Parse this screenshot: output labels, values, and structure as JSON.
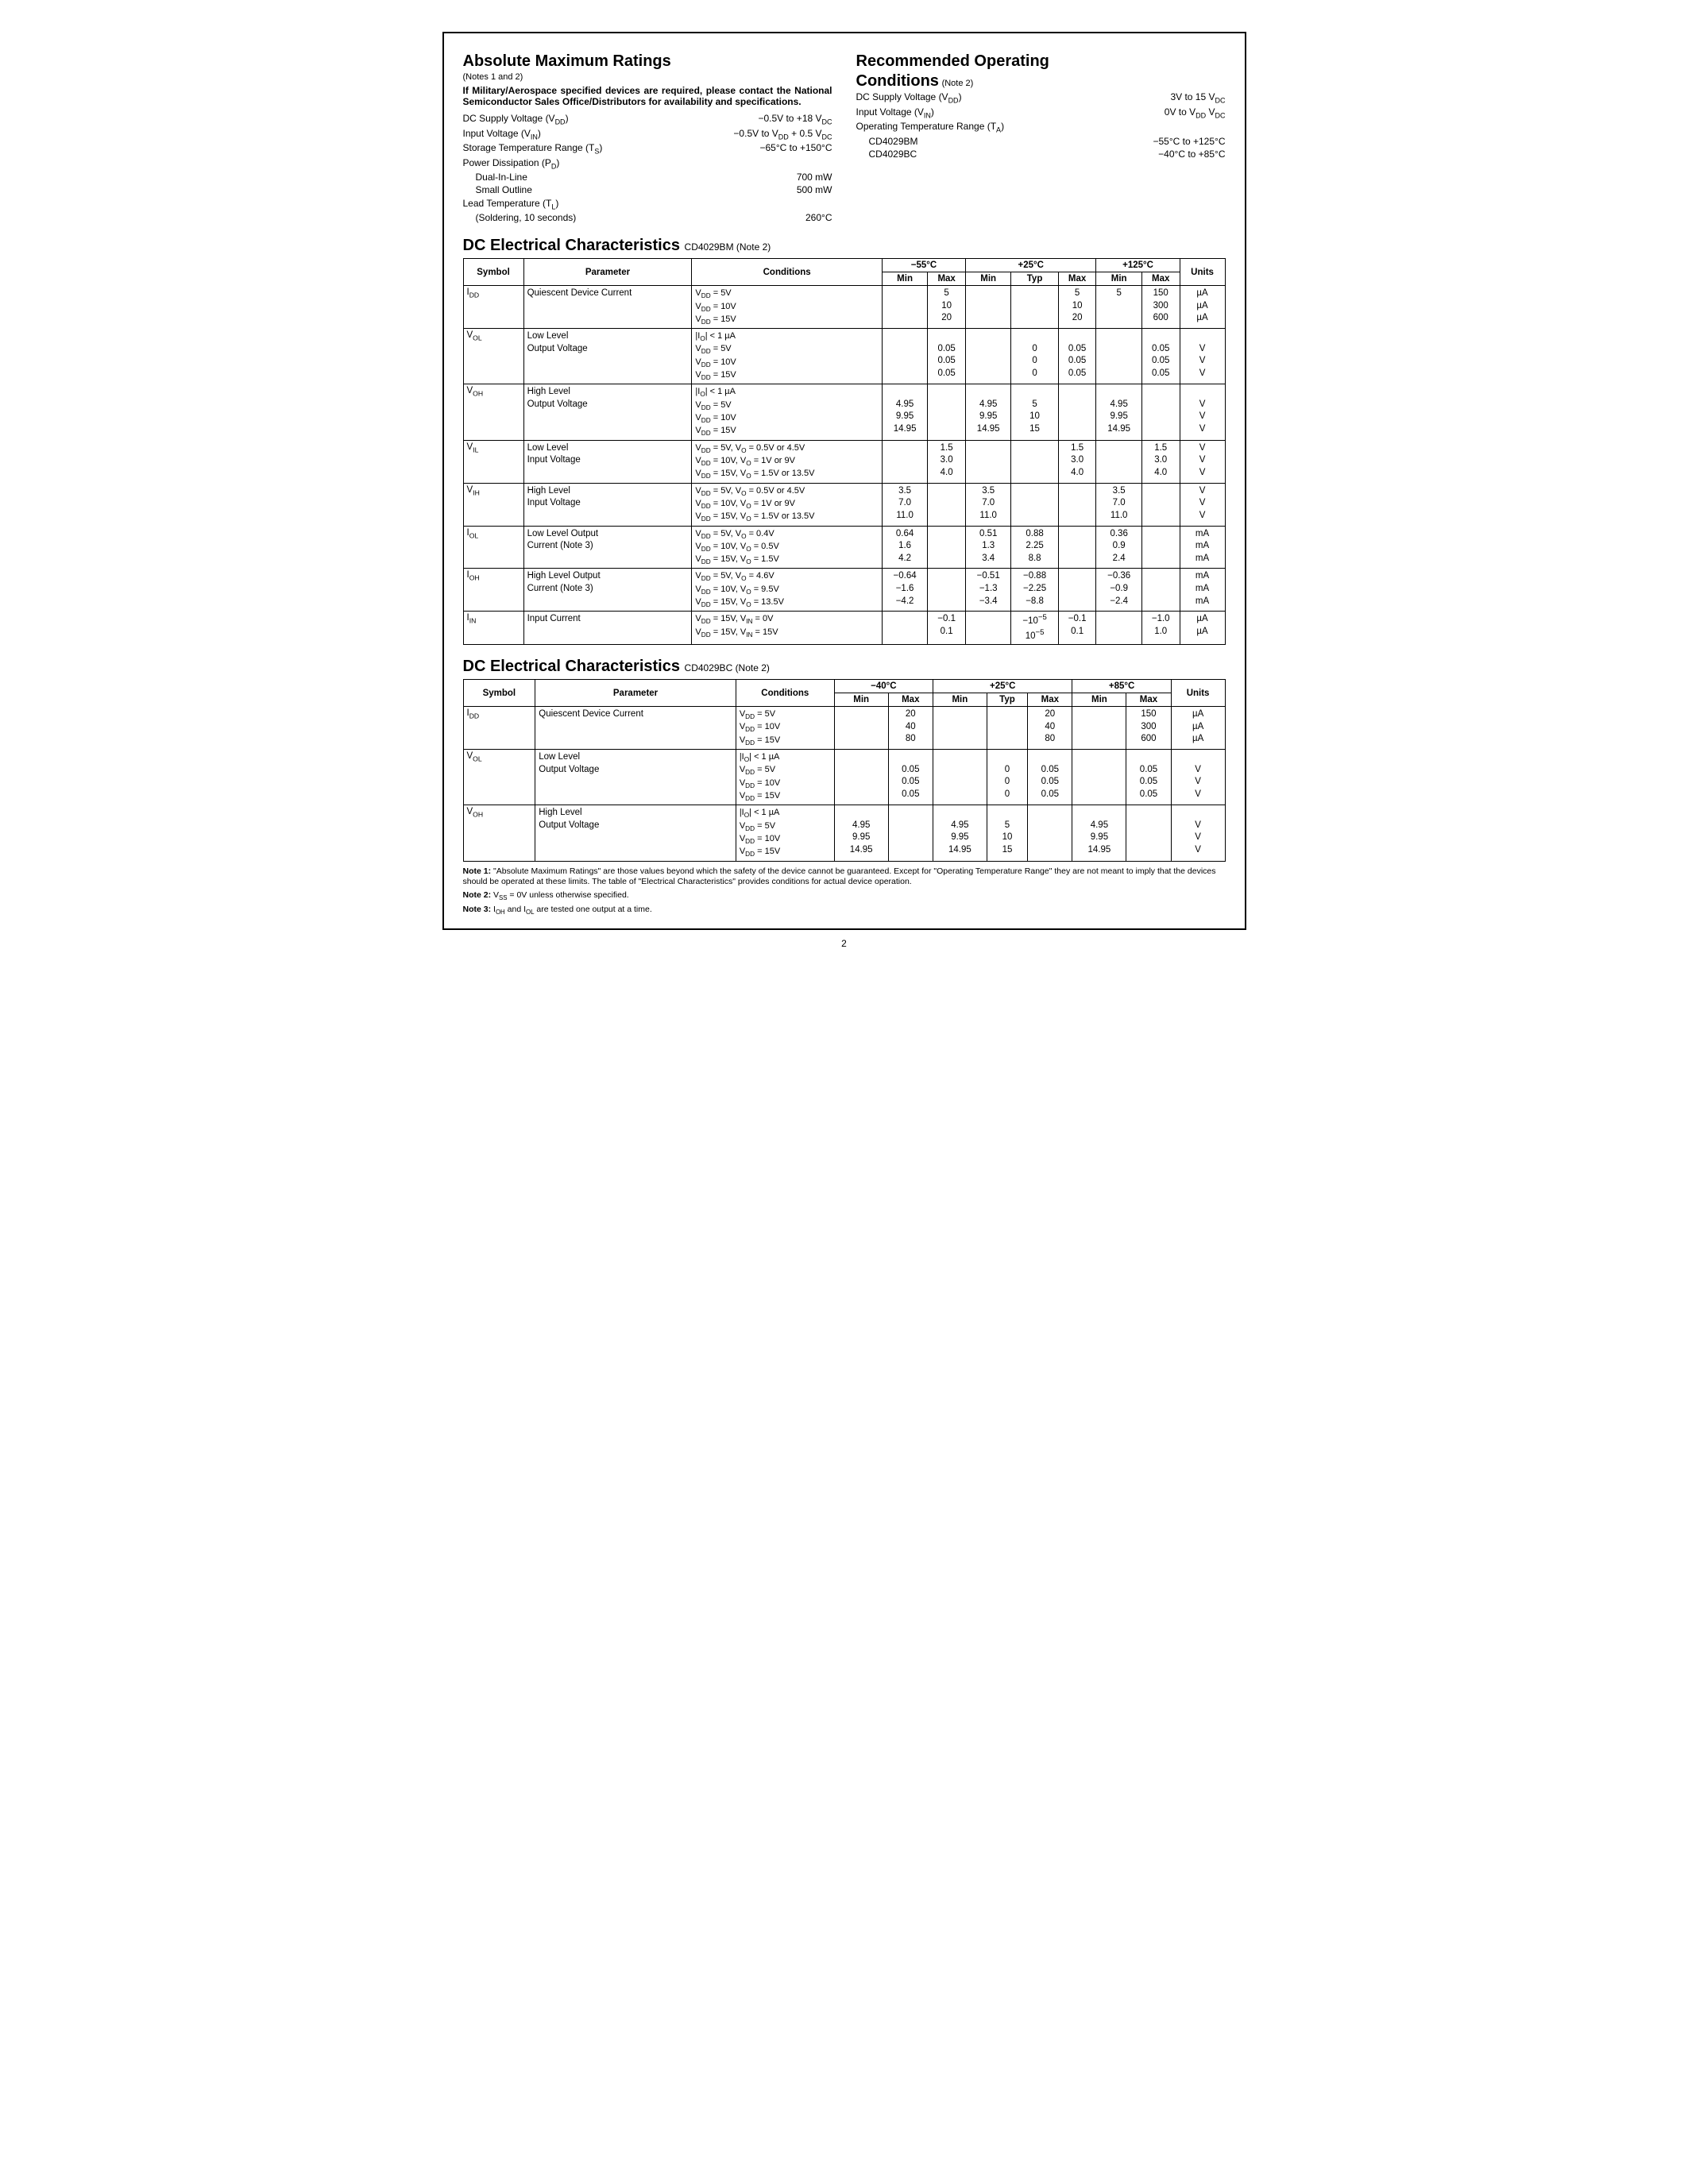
{
  "page_number": "2",
  "left": {
    "title": "Absolute Maximum Ratings",
    "note_suffix": "(Notes 1 and 2)",
    "military_note": "If Military/Aerospace specified devices are required, please contact the National Semiconductor Sales Office/Distributors for availability and specifications.",
    "rows": [
      {
        "label": "DC Supply Voltage (V<sub>DD</sub>)",
        "val": "−0.5V to +18 V<sub>DC</sub>"
      },
      {
        "label": "Input Voltage (V<sub>IN</sub>)",
        "val": "−0.5V to V<sub>DD</sub> + 0.5 V<sub>DC</sub>"
      },
      {
        "label": "Storage Temperature Range (T<sub>S</sub>)",
        "val": "−65°C to +150°C"
      },
      {
        "label": "Power Dissipation (P<sub>D</sub>)",
        "val": ""
      },
      {
        "label": "Dual-In-Line",
        "val": "700 mW",
        "indent": true
      },
      {
        "label": "Small Outline",
        "val": "500 mW",
        "indent": true
      },
      {
        "label": "Lead Temperature (T<sub>L</sub>)",
        "val": ""
      },
      {
        "label": "(Soldering, 10 seconds)",
        "val": "260°C",
        "indent": true
      }
    ]
  },
  "right": {
    "title": "Recommended Operating",
    "title2": "Conditions",
    "note_suffix": "(Note 2)",
    "rows": [
      {
        "label": "DC Supply Voltage (V<sub>DD</sub>)",
        "val": "3V to 15 V<sub>DC</sub>"
      },
      {
        "label": "Input Voltage (V<sub>IN</sub>)",
        "val": "0V to V<sub>DD</sub> V<sub>DC</sub>"
      },
      {
        "label": "Operating Temperature Range (T<sub>A</sub>)",
        "val": ""
      },
      {
        "label": "CD4029BM",
        "val": "−55°C to +125°C",
        "indent": true
      },
      {
        "label": "CD4029BC",
        "val": "−40°C to +85°C",
        "indent": true
      }
    ]
  },
  "table1": {
    "title": "DC Electrical Characteristics",
    "suffix": "CD4029BM (Note 2)",
    "temps": [
      "−55°C",
      "+25°C",
      "+125°C"
    ],
    "header_row1": [
      "Symbol",
      "Parameter",
      "Conditions"
    ],
    "header_row2": [
      "Min",
      "Max",
      "Min",
      "Typ",
      "Max",
      "Min",
      "Max"
    ],
    "units_label": "Units",
    "rows": [
      {
        "sym": "I<sub>DD</sub>",
        "param": "Quiescent Device Current",
        "cond": "V<sub>DD</sub> = 5V\nV<sub>DD</sub> = 10V\nV<sub>DD</sub> = 15V",
        "c": [
          "",
          "5\n10\n20",
          "",
          "",
          "5\n10\n20",
          "5",
          "150\n300\n600"
        ],
        "unit": "µA\nµA\nµA"
      },
      {
        "sym": "V<sub>OL</sub>",
        "param": "Low Level\nOutput Voltage",
        "cond": "|I<sub>O</sub>| < 1 µA\nV<sub>DD</sub> = 5V\nV<sub>DD</sub> = 10V\nV<sub>DD</sub> = 15V",
        "c": [
          "",
          "\n0.05\n0.05\n0.05",
          "",
          "\n0\n0\n0",
          "\n0.05\n0.05\n0.05",
          "",
          "\n0.05\n0.05\n0.05"
        ],
        "unit": "\nV\nV\nV"
      },
      {
        "sym": "V<sub>OH</sub>",
        "param": "High Level\nOutput Voltage",
        "cond": "|I<sub>O</sub>| < 1 µA\nV<sub>DD</sub> = 5V\nV<sub>DD</sub> = 10V\nV<sub>DD</sub> = 15V",
        "c": [
          "\n4.95\n9.95\n14.95",
          "",
          "\n4.95\n9.95\n14.95",
          "\n5\n10\n15",
          "",
          "\n4.95\n9.95\n14.95",
          ""
        ],
        "unit": "\nV\nV\nV"
      },
      {
        "sym": "V<sub>IL</sub>",
        "param": "Low Level\nInput Voltage",
        "cond": "V<sub>DD</sub> = 5V, V<sub>O</sub> = 0.5V or 4.5V\nV<sub>DD</sub> = 10V, V<sub>O</sub> = 1V or 9V\nV<sub>DD</sub> = 15V, V<sub>O</sub> = 1.5V or 13.5V",
        "c": [
          "",
          "1.5\n3.0\n4.0",
          "",
          "",
          "1.5\n3.0\n4.0",
          "",
          "1.5\n3.0\n4.0"
        ],
        "unit": "V\nV\nV"
      },
      {
        "sym": "V<sub>IH</sub>",
        "param": "High Level\nInput Voltage",
        "cond": "V<sub>DD</sub> = 5V, V<sub>O</sub> = 0.5V or 4.5V\nV<sub>DD</sub> = 10V, V<sub>O</sub> = 1V or 9V\nV<sub>DD</sub> = 15V, V<sub>O</sub> = 1.5V or 13.5V",
        "c": [
          "3.5\n7.0\n11.0",
          "",
          "3.5\n7.0\n11.0",
          "",
          "",
          "3.5\n7.0\n11.0",
          ""
        ],
        "unit": "V\nV\nV"
      },
      {
        "sym": "I<sub>OL</sub>",
        "param": "Low Level Output\nCurrent (Note 3)",
        "cond": "V<sub>DD</sub> = 5V, V<sub>O</sub> = 0.4V\nV<sub>DD</sub> = 10V, V<sub>O</sub> = 0.5V\nV<sub>DD</sub> = 15V, V<sub>O</sub> = 1.5V",
        "c": [
          "0.64\n1.6\n4.2",
          "",
          "0.51\n1.3\n3.4",
          "0.88\n2.25\n8.8",
          "",
          "0.36\n0.9\n2.4",
          ""
        ],
        "unit": "mA\nmA\nmA"
      },
      {
        "sym": "I<sub>OH</sub>",
        "param": "High Level Output\nCurrent (Note 3)",
        "cond": "V<sub>DD</sub> = 5V, V<sub>O</sub> = 4.6V\nV<sub>DD</sub> = 10V, V<sub>O</sub> = 9.5V\nV<sub>DD</sub> = 15V, V<sub>O</sub> = 13.5V",
        "c": [
          "−0.64\n−1.6\n−4.2",
          "",
          "−0.51\n−1.3\n−3.4",
          "−0.88\n−2.25\n−8.8",
          "",
          "−0.36\n−0.9\n−2.4",
          ""
        ],
        "unit": "mA\nmA\nmA"
      },
      {
        "sym": "I<sub>IN</sub>",
        "param": "Input Current",
        "cond": "V<sub>DD</sub> = 15V, V<sub>IN</sub> = 0V\nV<sub>DD</sub> = 15V, V<sub>IN</sub> = 15V",
        "c": [
          "",
          "−0.1\n0.1",
          "",
          "−10<sup>−5</sup>\n10<sup>−5</sup>",
          "−0.1\n0.1",
          "",
          "−1.0\n1.0"
        ],
        "unit": "µA\nµA"
      }
    ]
  },
  "table2": {
    "title": "DC Electrical Characteristics",
    "suffix": "CD4029BC (Note 2)",
    "temps": [
      "−40°C",
      "+25°C",
      "+85°C"
    ],
    "header_row1": [
      "Symbol",
      "Parameter",
      "Conditions"
    ],
    "header_row2": [
      "Min",
      "Max",
      "Min",
      "Typ",
      "Max",
      "Min",
      "Max"
    ],
    "units_label": "Units",
    "rows": [
      {
        "sym": "I<sub>DD</sub>",
        "param": "Quiescent Device Current",
        "cond": "V<sub>DD</sub> = 5V\nV<sub>DD</sub> = 10V\nV<sub>DD</sub> = 15V",
        "c": [
          "",
          "20\n40\n80",
          "",
          "",
          "20\n40\n80",
          "",
          "150\n300\n600"
        ],
        "unit": "µA\nµA\nµA"
      },
      {
        "sym": "V<sub>OL</sub>",
        "param": "Low Level\nOutput Voltage",
        "cond": "|I<sub>O</sub>| < 1 µA\nV<sub>DD</sub> = 5V\nV<sub>DD</sub> = 10V\nV<sub>DD</sub> = 15V",
        "c": [
          "",
          "\n0.05\n0.05\n0.05",
          "",
          "\n0\n0\n0",
          "\n0.05\n0.05\n0.05",
          "",
          "\n0.05\n0.05\n0.05"
        ],
        "unit": "\nV\nV\nV"
      },
      {
        "sym": "V<sub>OH</sub>",
        "param": "High Level\nOutput Voltage",
        "cond": "|I<sub>O</sub>| < 1 µA\nV<sub>DD</sub> = 5V\nV<sub>DD</sub> = 10V\nV<sub>DD</sub> = 15V",
        "c": [
          "\n4.95\n9.95\n14.95",
          "",
          "\n4.95\n9.95\n14.95",
          "\n5\n10\n15",
          "",
          "\n4.95\n9.95\n14.95",
          ""
        ],
        "unit": "\nV\nV\nV"
      }
    ]
  },
  "notes": [
    "<b>Note 1:</b> \"Absolute Maximum Ratings\" are those values beyond which the safety of the device cannot be guaranteed. Except for \"Operating Temperature Range\" they are not meant to imply that the devices should be operated at these limits. The table of \"Electrical Characteristics\" provides conditions for actual device operation.",
    "<b>Note 2:</b> V<sub>SS</sub> = 0V unless otherwise specified.",
    "<b>Note 3:</b> I<sub>OH</sub> and I<sub>OL</sub> are tested one output at a time."
  ]
}
